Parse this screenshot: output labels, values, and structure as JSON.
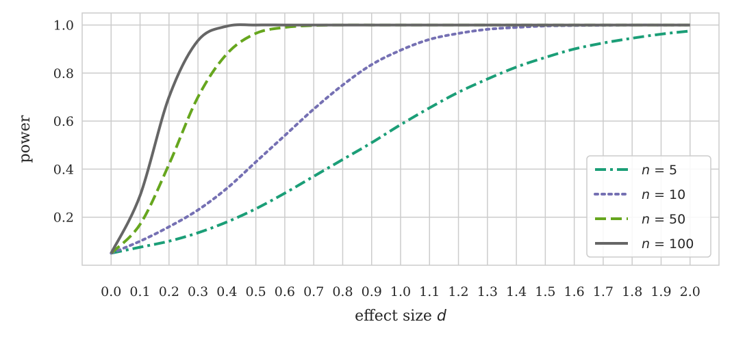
{
  "chart_data": {
    "type": "line",
    "xlabel": "effect size",
    "xlabel_var": "d",
    "ylabel": "power",
    "xlim": [
      -0.1,
      2.1
    ],
    "ylim": [
      0.0,
      1.05
    ],
    "x_ticks": [
      "0.0",
      "0.1",
      "0.2",
      "0.3",
      "0.4",
      "0.5",
      "0.6",
      "0.7",
      "0.8",
      "0.9",
      "1.0",
      "1.1",
      "1.2",
      "1.3",
      "1.4",
      "1.5",
      "1.6",
      "1.7",
      "1.8",
      "1.9",
      "2.0"
    ],
    "y_ticks": [
      "0.2",
      "0.4",
      "0.6",
      "0.8",
      "1.0"
    ],
    "grid": true,
    "legend_position": "lower-right",
    "x": [
      0.0,
      0.1,
      0.2,
      0.3,
      0.4,
      0.5,
      0.6,
      0.7,
      0.8,
      0.9,
      1.0,
      1.1,
      1.2,
      1.3,
      1.4,
      1.5,
      1.6,
      1.7,
      1.8,
      1.9,
      2.0
    ],
    "series": [
      {
        "name": "n = 5",
        "legend_var": "n",
        "legend_value": "5",
        "color": "#1b9e77",
        "dash": "dashdot",
        "values": [
          0.05,
          0.075,
          0.1,
          0.135,
          0.18,
          0.235,
          0.3,
          0.37,
          0.44,
          0.51,
          0.585,
          0.655,
          0.72,
          0.775,
          0.825,
          0.865,
          0.9,
          0.925,
          0.945,
          0.962,
          0.975
        ]
      },
      {
        "name": "n = 10",
        "legend_var": "n",
        "legend_value": "10",
        "color": "#7570b3",
        "dash": "dotted",
        "values": [
          0.05,
          0.1,
          0.16,
          0.23,
          0.32,
          0.43,
          0.54,
          0.65,
          0.75,
          0.835,
          0.895,
          0.94,
          0.965,
          0.982,
          0.99,
          0.996,
          0.998,
          0.999,
          1.0,
          1.0,
          1.0
        ]
      },
      {
        "name": "n = 50",
        "legend_var": "n",
        "legend_value": "50",
        "color": "#66a61e",
        "dash": "dashed",
        "values": [
          0.05,
          0.17,
          0.42,
          0.7,
          0.88,
          0.965,
          0.99,
          0.998,
          1.0,
          1.0,
          1.0,
          1.0,
          1.0,
          1.0,
          1.0,
          1.0,
          1.0,
          1.0,
          1.0,
          1.0,
          1.0
        ]
      },
      {
        "name": "n = 100",
        "legend_var": "n",
        "legend_value": "100",
        "color": "#666666",
        "dash": "solid",
        "values": [
          0.05,
          0.29,
          0.7,
          0.935,
          0.995,
          1.0,
          1.0,
          1.0,
          1.0,
          1.0,
          1.0,
          1.0,
          1.0,
          1.0,
          1.0,
          1.0,
          1.0,
          1.0,
          1.0,
          1.0,
          1.0
        ]
      }
    ]
  }
}
